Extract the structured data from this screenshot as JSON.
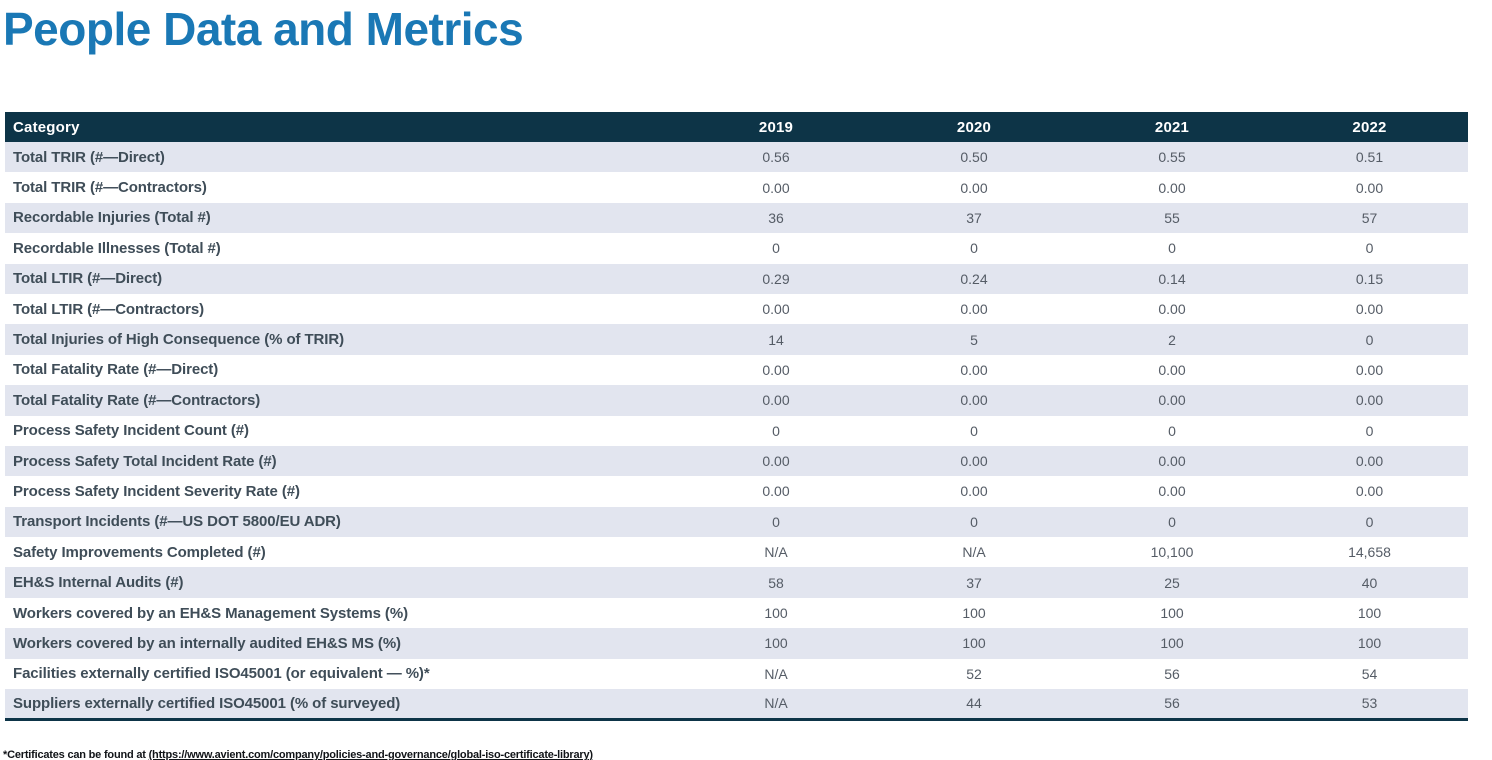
{
  "page_title": "People Data and Metrics",
  "table": {
    "columns": [
      "Category",
      "2019",
      "2020",
      "2021",
      "2022"
    ],
    "rows": [
      {
        "category": "Total TRIR (#—Direct)",
        "values": [
          "0.56",
          "0.50",
          "0.55",
          "0.51"
        ]
      },
      {
        "category": "Total TRIR (#—Contractors)",
        "values": [
          "0.00",
          "0.00",
          "0.00",
          "0.00"
        ]
      },
      {
        "category": "Recordable Injuries (Total #)",
        "values": [
          "36",
          "37",
          "55",
          "57"
        ]
      },
      {
        "category": "Recordable Illnesses (Total #)",
        "values": [
          "0",
          "0",
          "0",
          "0"
        ]
      },
      {
        "category": "Total LTIR (#—Direct)",
        "values": [
          "0.29",
          "0.24",
          "0.14",
          "0.15"
        ]
      },
      {
        "category": "Total LTIR (#—Contractors)",
        "values": [
          "0.00",
          "0.00",
          "0.00",
          "0.00"
        ]
      },
      {
        "category": "Total Injuries of High Consequence (% of TRIR)",
        "values": [
          "14",
          "5",
          "2",
          "0"
        ]
      },
      {
        "category": "Total Fatality Rate (#—Direct)",
        "values": [
          "0.00",
          "0.00",
          "0.00",
          "0.00"
        ]
      },
      {
        "category": "Total Fatality Rate (#—Contractors)",
        "values": [
          "0.00",
          "0.00",
          "0.00",
          "0.00"
        ]
      },
      {
        "category": "Process Safety Incident Count (#)",
        "values": [
          "0",
          "0",
          "0",
          "0"
        ]
      },
      {
        "category": "Process Safety Total Incident Rate (#)",
        "values": [
          "0.00",
          "0.00",
          "0.00",
          "0.00"
        ]
      },
      {
        "category": "Process Safety Incident Severity Rate (#)",
        "values": [
          "0.00",
          "0.00",
          "0.00",
          "0.00"
        ]
      },
      {
        "category": "Transport Incidents (#—US DOT 5800/EU ADR)",
        "values": [
          "0",
          "0",
          "0",
          "0"
        ]
      },
      {
        "category": "Safety Improvements Completed (#)",
        "values": [
          "N/A",
          "N/A",
          "10,100",
          "14,658"
        ]
      },
      {
        "category": "EH&S Internal Audits (#)",
        "values": [
          "58",
          "37",
          "25",
          "40"
        ]
      },
      {
        "category": "Workers covered by an EH&S Management Systems (%)",
        "values": [
          "100",
          "100",
          "100",
          "100"
        ]
      },
      {
        "category": "Workers covered by an internally audited EH&S MS (%)",
        "values": [
          "100",
          "100",
          "100",
          "100"
        ]
      },
      {
        "category": "Facilities externally certified ISO45001 (or equivalent — %)*",
        "values": [
          "N/A",
          "52",
          "56",
          "54"
        ]
      },
      {
        "category": "Suppliers externally certified ISO45001 (% of surveyed)",
        "values": [
          "N/A",
          "44",
          "56",
          "53"
        ]
      }
    ]
  },
  "footnote": {
    "prefix": "*Certificates can be found at ",
    "link": "(https://www.avient.com/company/policies-and-governance/global-iso-certificate-library)"
  },
  "colors": {
    "title_blue": "#1a78b5",
    "header_navy": "#0d3447",
    "stripe": "#e2e5ef"
  }
}
